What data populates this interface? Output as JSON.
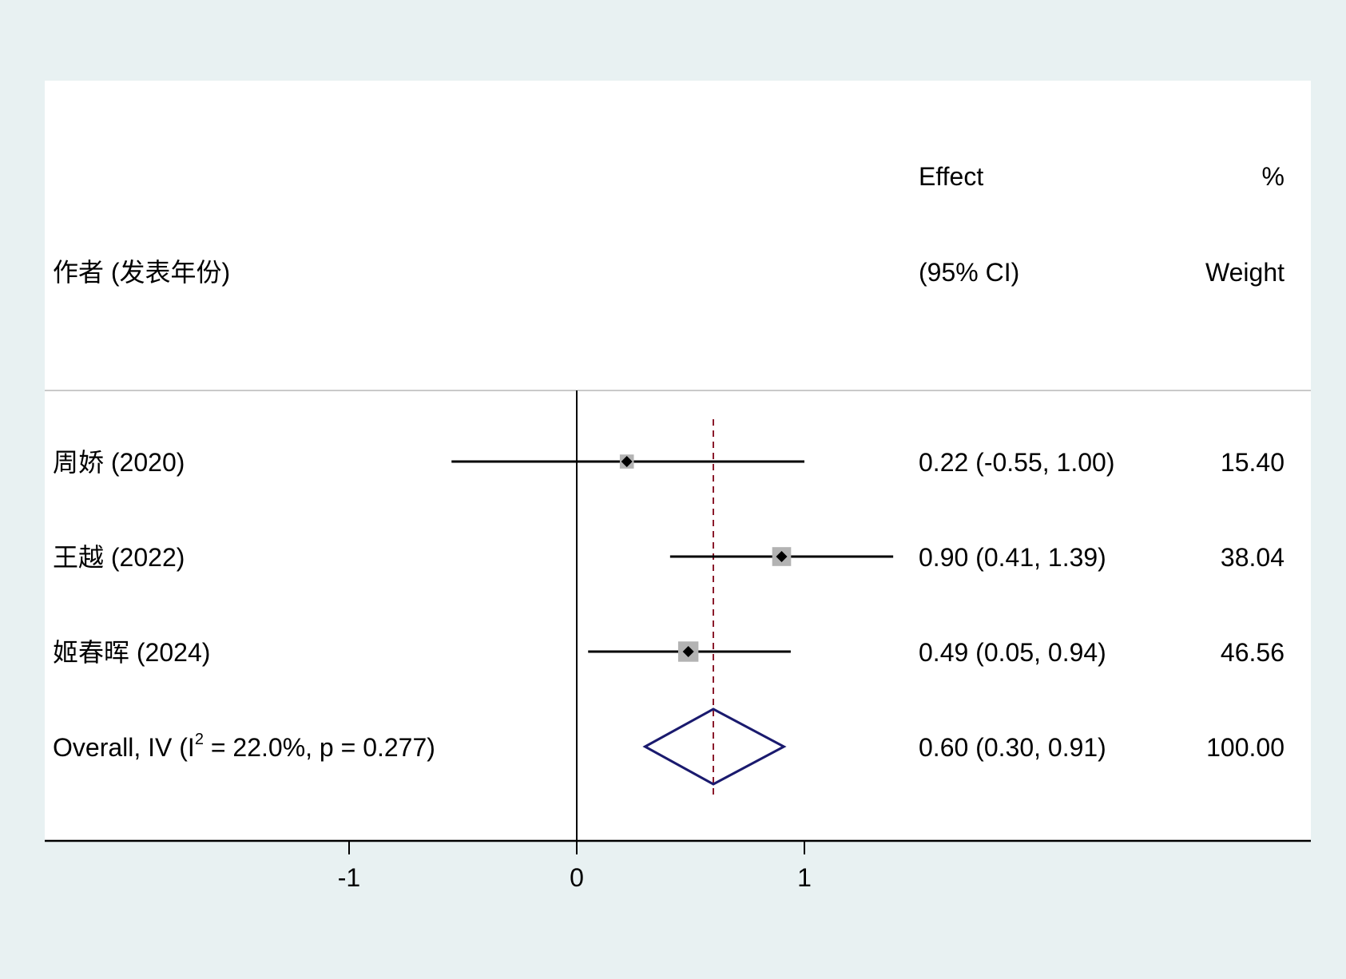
{
  "chart_data": {
    "type": "forest",
    "headers": {
      "study": "作者 (发表年份)",
      "effect_line1": "Effect",
      "effect_line2": "(95% CI)",
      "weight_line1": "%",
      "weight_line2": "Weight"
    },
    "studies": [
      {
        "label": "周娇 (2020)",
        "effect": 0.22,
        "lower": -0.55,
        "upper": 1.0,
        "ci_text": "0.22 (-0.55, 1.00)",
        "weight": 15.4,
        "weight_text": "15.40"
      },
      {
        "label": "王越 (2022)",
        "effect": 0.9,
        "lower": 0.41,
        "upper": 1.39,
        "ci_text": "0.90 (0.41, 1.39)",
        "weight": 38.04,
        "weight_text": "38.04"
      },
      {
        "label": "姬春晖 (2024)",
        "effect": 0.49,
        "lower": 0.05,
        "upper": 0.94,
        "ci_text": "0.49 (0.05, 0.94)",
        "weight": 46.56,
        "weight_text": "46.56"
      }
    ],
    "overall": {
      "label_prefix": "Overall, IV (I",
      "label_sup": "2",
      "label_suffix": " = 22.0%, p = 0.277)",
      "effect": 0.6,
      "lower": 0.3,
      "upper": 0.91,
      "ci_text": "0.60 (0.30, 0.91)",
      "weight_text": "100.00"
    },
    "x_ticks": [
      -1,
      0,
      1
    ],
    "x_tick_labels": [
      "-1",
      "0",
      "1"
    ],
    "null_line": 0,
    "colors": {
      "background": "#e8f1f2",
      "panel": "#ffffff",
      "ci_line": "#000000",
      "weight_box": "#b3b3b3",
      "overall_diamond": "#1a1a6e",
      "overall_line": "#8b1a2b"
    }
  }
}
